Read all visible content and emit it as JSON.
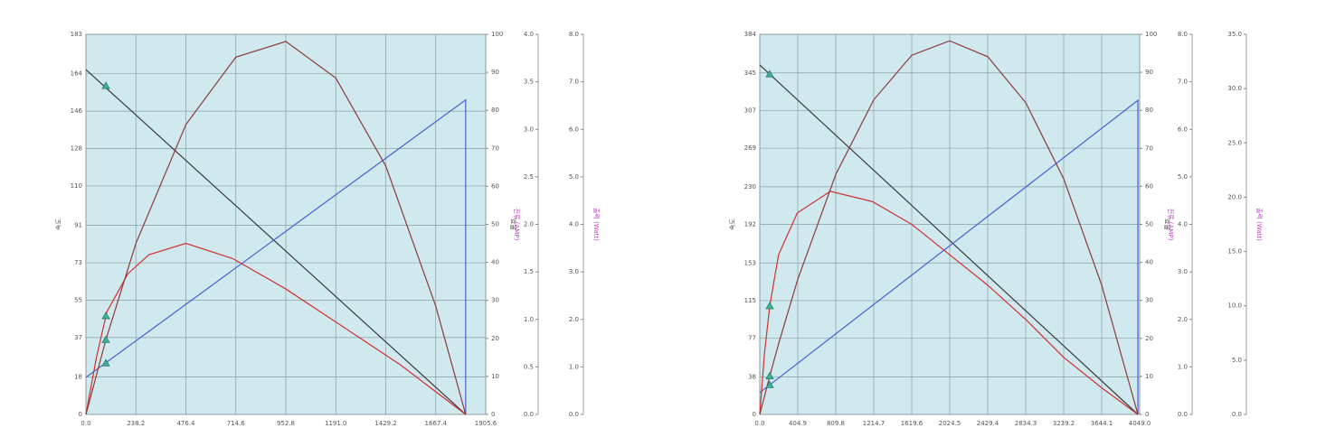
{
  "chart_data": [
    {
      "type": "line",
      "xlim": [
        0,
        1905.6
      ],
      "xticks": [
        {
          "value": 0,
          "label": "0.0"
        },
        238.2,
        476.4,
        714.6,
        952.8,
        {
          "value": 1191,
          "label": "1191.0"
        },
        1429.2,
        1667.4,
        1905.6
      ],
      "ylim": [
        0,
        183
      ],
      "yticks": [
        0,
        18,
        37,
        55,
        73,
        91,
        110,
        128,
        146,
        164,
        183
      ],
      "ylabel": "속도",
      "y2lim": [
        0,
        100
      ],
      "y2ticks": [
        0,
        10,
        20,
        30,
        40,
        50,
        60,
        70,
        80,
        90,
        100
      ],
      "y2label": "효율",
      "y3lim": [
        0,
        4
      ],
      "y3ticks": [
        {
          "value": 0,
          "label": "0.0"
        },
        0.5,
        {
          "value": 1,
          "label": "1.0"
        },
        1.5,
        {
          "value": 2,
          "label": "2.0"
        },
        2.5,
        {
          "value": 3,
          "label": "3.0"
        },
        3.5,
        {
          "value": 4,
          "label": "4.0"
        }
      ],
      "y3label": "전류 (AMP)",
      "y4lim": [
        0,
        8
      ],
      "y4ticks": [
        {
          "value": 0,
          "label": "0.0"
        },
        {
          "value": 1,
          "label": "1.0"
        },
        {
          "value": 2,
          "label": "2.0"
        },
        {
          "value": 3,
          "label": "3.0"
        },
        {
          "value": 4,
          "label": "4.0"
        },
        {
          "value": 5,
          "label": "5.0"
        },
        {
          "value": 6,
          "label": "6.0"
        },
        {
          "value": 7,
          "label": "7.0"
        },
        {
          "value": 8,
          "label": "8.0"
        }
      ],
      "y4label": "출력 (Watt)",
      "grid": true,
      "background": "#cfe9ef",
      "series": [
        {
          "color": "#3a3a3a",
          "axis": "y",
          "x": [
            0,
            1810
          ],
          "values": [
            166,
            0
          ]
        },
        {
          "color": "#4a5fd0",
          "axis": "y3",
          "x": [
            0,
            1810,
            1810
          ],
          "values": [
            0.39,
            3.31,
            0
          ]
        },
        {
          "color": "#d03030",
          "axis": "y2",
          "x": [
            0,
            50,
            100,
            200,
            300,
            476.4,
            700,
            952.8,
            1200,
            1500,
            1810
          ],
          "values": [
            0,
            15,
            27,
            37,
            42,
            45,
            41,
            33,
            24,
            13,
            0
          ]
        },
        {
          "color": "#8b3a3a",
          "axis": "y4",
          "x": [
            0,
            95,
            238.2,
            476.4,
            714.6,
            952.8,
            1191,
            1429.2,
            1667.4,
            1810
          ],
          "values": [
            0,
            1.57,
            3.6,
            6.1,
            7.52,
            7.85,
            7.08,
            5.23,
            2.28,
            0
          ]
        }
      ],
      "markers": {
        "color": "#3cb39a",
        "axes": [
          "y",
          "y2",
          "y4",
          "y3"
        ],
        "x": [
          95,
          95,
          95,
          95
        ],
        "values": [
          158.2,
          25.9,
          1.57,
          0.54
        ]
      }
    },
    {
      "type": "line",
      "xlim": [
        0,
        4049
      ],
      "xticks": [
        {
          "value": 0,
          "label": "0.0"
        },
        404.9,
        809.8,
        1214.7,
        1619.6,
        2024.5,
        2429.4,
        2834.3,
        3239.2,
        3644.1,
        {
          "value": 4049,
          "label": "4049.0"
        }
      ],
      "ylim": [
        0,
        384
      ],
      "yticks": [
        0,
        38,
        77,
        115,
        153,
        192,
        230,
        269,
        307,
        345,
        384
      ],
      "ylabel": "속도",
      "y2lim": [
        0,
        100
      ],
      "y2ticks": [
        0,
        10,
        20,
        30,
        40,
        50,
        60,
        70,
        80,
        90,
        100
      ],
      "y2label": "효율",
      "y3lim": [
        0,
        8
      ],
      "y3ticks": [
        {
          "value": 0,
          "label": "0.0"
        },
        {
          "value": 1,
          "label": "1.0"
        },
        {
          "value": 2,
          "label": "2.0"
        },
        {
          "value": 3,
          "label": "3.0"
        },
        {
          "value": 4,
          "label": "4.0"
        },
        {
          "value": 5,
          "label": "5.0"
        },
        {
          "value": 6,
          "label": "6.0"
        },
        {
          "value": 7,
          "label": "7.0"
        },
        {
          "value": 8,
          "label": "8.0"
        }
      ],
      "y3label": "전류 (AMP)",
      "y4lim": [
        0,
        35
      ],
      "y4ticks": [
        {
          "value": 0,
          "label": "0.0"
        },
        {
          "value": 5,
          "label": "5.0"
        },
        {
          "value": 10,
          "label": "10.0"
        },
        {
          "value": 15,
          "label": "15.0"
        },
        {
          "value": 20,
          "label": "20.0"
        },
        {
          "value": 25,
          "label": "25.0"
        },
        {
          "value": 30,
          "label": "30.0"
        },
        {
          "value": 35,
          "label": "35.0"
        }
      ],
      "y4label": "출력 (Watt)",
      "grid": true,
      "background": "#cfe9ef",
      "series": [
        {
          "color": "#3a3a3a",
          "axis": "y",
          "x": [
            0,
            4030
          ],
          "values": [
            353,
            0
          ]
        },
        {
          "color": "#4a5fd0",
          "axis": "y3",
          "x": [
            0,
            4030,
            4030
          ],
          "values": [
            0.46,
            6.61,
            0
          ]
        },
        {
          "color": "#d03030",
          "axis": "y2",
          "x": [
            0,
            50,
            106,
            200,
            400,
            752,
            1200,
            1619.6,
            2024.5,
            2429.4,
            2834.3,
            3239.2,
            3644.1,
            4030
          ],
          "values": [
            0,
            16,
            28.5,
            42,
            53,
            58.7,
            56,
            50,
            42,
            34,
            25,
            15,
            7,
            0
          ]
        },
        {
          "color": "#8b3a3a",
          "axis": "y4",
          "x": [
            0,
            106,
            202,
            404.9,
            809.8,
            1214.7,
            1619.6,
            2024.5,
            2429.4,
            2834.3,
            3239.2,
            3644.1,
            4030
          ],
          "values": [
            0,
            3.52,
            6.55,
            12.44,
            22.09,
            28.97,
            33.07,
            34.4,
            32.94,
            28.71,
            21.7,
            11.91,
            0
          ]
        }
      ],
      "markers": {
        "color": "#3cb39a",
        "axes": [
          "y",
          "y2",
          "y4",
          "y3"
        ],
        "x": [
          106,
          106,
          106,
          106
        ],
        "values": [
          343.7,
          28.5,
          3.52,
          0.62
        ]
      }
    }
  ]
}
